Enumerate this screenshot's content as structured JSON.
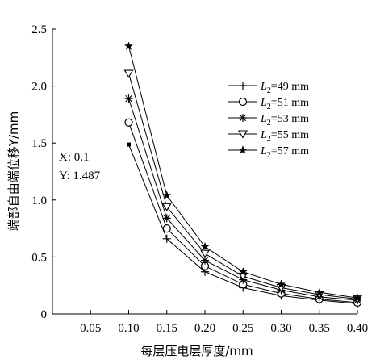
{
  "chart_data": {
    "type": "line",
    "xlabel": "每层压电层厚度/mm",
    "ylabel": "端部自由端位移Y/mm",
    "xlim": [
      0,
      0.4
    ],
    "ylim": [
      0,
      2.5
    ],
    "xticks": [
      "0.05",
      "0.10",
      "0.15",
      "0.20",
      "0.25",
      "0.30",
      "0.35",
      "0.40"
    ],
    "yticks": [
      "0",
      "0.5",
      "1.0",
      "1.5",
      "2.0",
      "2.5"
    ],
    "x": [
      0.1,
      0.15,
      0.2,
      0.25,
      0.3,
      0.35,
      0.4
    ],
    "legend_position": "top-right",
    "series": [
      {
        "name": "49 mm",
        "legend_prefix": "L",
        "legend_sub": "2",
        "marker": "plus",
        "values": [
          1.487,
          0.66,
          0.37,
          0.23,
          0.16,
          0.12,
          0.09
        ]
      },
      {
        "name": "51 mm",
        "legend_prefix": "L",
        "legend_sub": "2",
        "marker": "circle",
        "values": [
          1.68,
          0.75,
          0.42,
          0.26,
          0.18,
          0.13,
          0.1
        ]
      },
      {
        "name": "53 mm",
        "legend_prefix": "L",
        "legend_sub": "2",
        "marker": "asterisk",
        "values": [
          1.89,
          0.84,
          0.47,
          0.3,
          0.21,
          0.15,
          0.12
        ]
      },
      {
        "name": "55 mm",
        "legend_prefix": "L",
        "legend_sub": "2",
        "marker": "triangle-down",
        "values": [
          2.11,
          0.94,
          0.53,
          0.33,
          0.23,
          0.17,
          0.13
        ]
      },
      {
        "name": "57 mm",
        "legend_prefix": "L",
        "legend_sub": "2",
        "marker": "star",
        "values": [
          2.35,
          1.04,
          0.59,
          0.37,
          0.26,
          0.19,
          0.14
        ]
      }
    ],
    "annotation": {
      "line1": "X: 0.1",
      "line2": "Y: 1.487"
    }
  }
}
